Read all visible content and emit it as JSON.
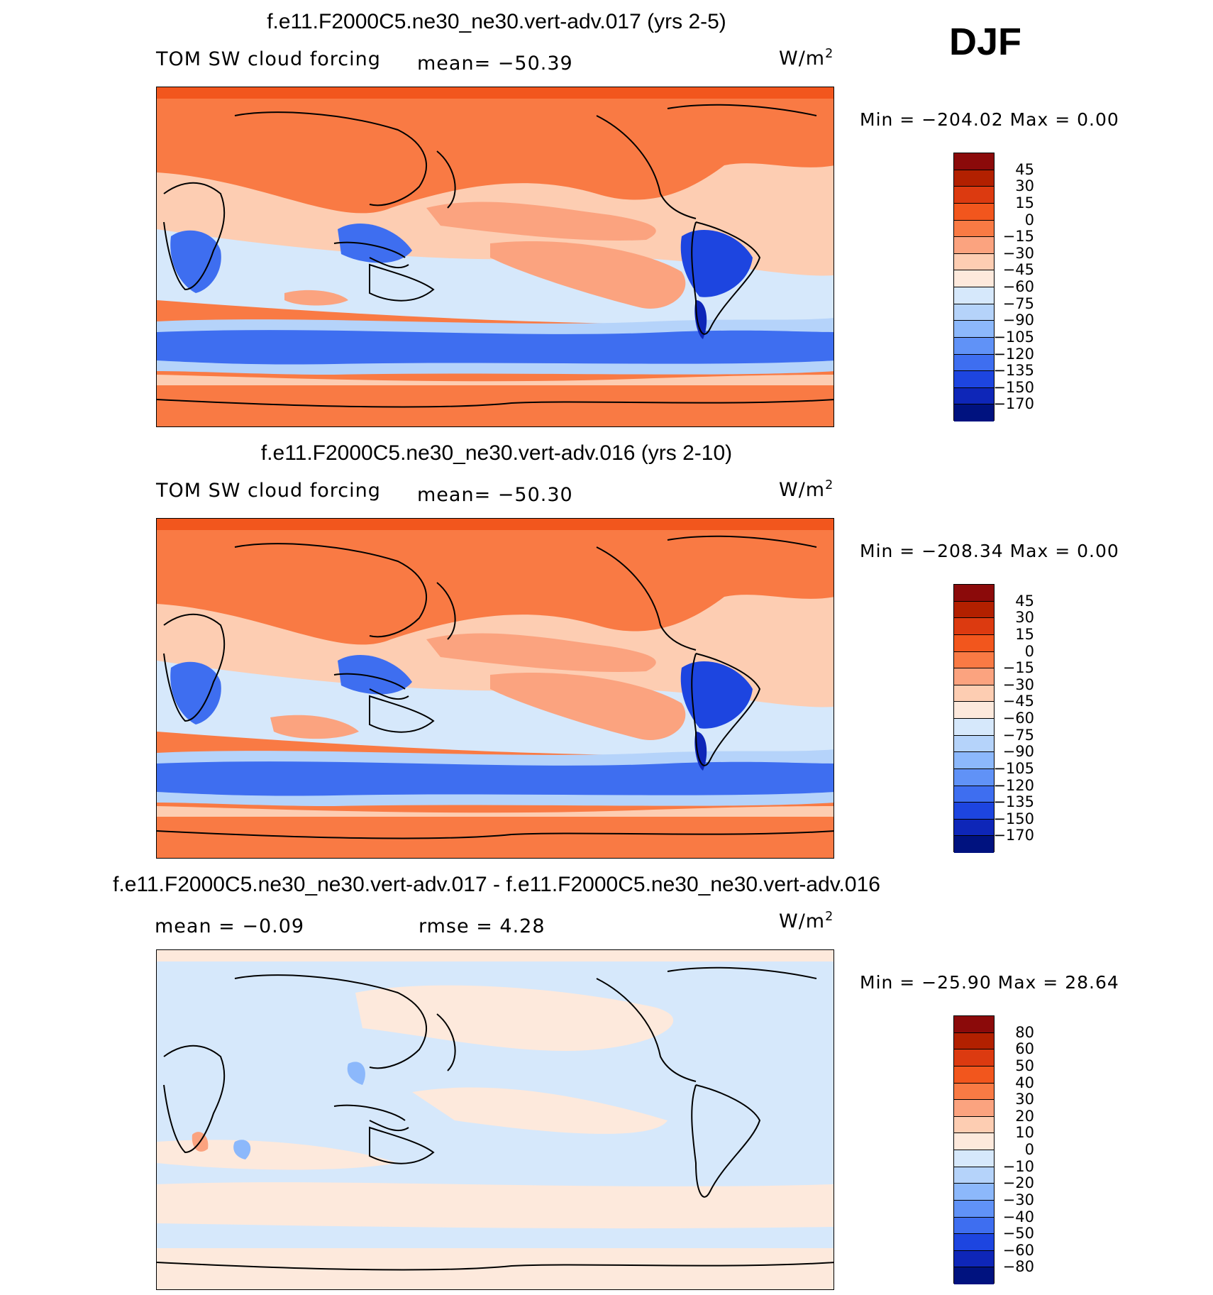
{
  "season": "DJF",
  "panels": [
    {
      "title": "f.e11.F2000C5.ne30_ne30.vert-adv.017 (yrs 2-5)",
      "field": "TOM SW cloud forcing",
      "stat_text": "mean=  −50.39",
      "units_base": "W/m",
      "units_exp": "2",
      "minmax_text": "Min  =  −204.02  Max  =     0.00",
      "colorbar_labels": [
        "45",
        "30",
        "15",
        "0",
        "−15",
        "−30",
        "−45",
        "−60",
        "−75",
        "−90",
        "−105",
        "−120",
        "−135",
        "−150",
        "−170"
      ]
    },
    {
      "title": "f.e11.F2000C5.ne30_ne30.vert-adv.016 (yrs 2-10)",
      "field": "TOM SW cloud forcing",
      "stat_text": "mean=  −50.30",
      "units_base": "W/m",
      "units_exp": "2",
      "minmax_text": "Min  =  −208.34  Max  =     0.00",
      "colorbar_labels": [
        "45",
        "30",
        "15",
        "0",
        "−15",
        "−30",
        "−45",
        "−60",
        "−75",
        "−90",
        "−105",
        "−120",
        "−135",
        "−150",
        "−170"
      ]
    },
    {
      "title": "f.e11.F2000C5.ne30_ne30.vert-adv.017 - f.e11.F2000C5.ne30_ne30.vert-adv.016",
      "mean_text": "mean  =    −0.09",
      "rmse_text": "rmse  =      4.28",
      "units_base": "W/m",
      "units_exp": "2",
      "minmax_text": "Min  =  −25.90  Max  =   28.64",
      "colorbar_labels": [
        "80",
        "60",
        "50",
        "40",
        "30",
        "20",
        "10",
        "0",
        "−10",
        "−20",
        "−30",
        "−40",
        "−50",
        "−60",
        "−80"
      ]
    }
  ],
  "colorbar_colors": [
    "#8b0a0a",
    "#b22000",
    "#dc3a10",
    "#f2561d",
    "#f97a44",
    "#fba37f",
    "#fdcdb2",
    "#fde9dc",
    "#d6e8fb",
    "#b5d3fa",
    "#8cb8fb",
    "#6092f7",
    "#3e6ef0",
    "#1d45e0",
    "#0e26b8",
    "#00127f"
  ],
  "map_colors": {
    "ocean_warm": "#f97a44",
    "light_warm": "#fdcdb2",
    "mid_warm": "#fba37f",
    "neutral_blue": "#d6e8fb",
    "light_blue": "#b5d3fa",
    "mid_blue": "#6092f7",
    "deep_blue": "#2a55e8",
    "darkest": "#0e26b8",
    "diff_pos": "#fde9dc",
    "diff_neg": "#d6e8fb"
  }
}
